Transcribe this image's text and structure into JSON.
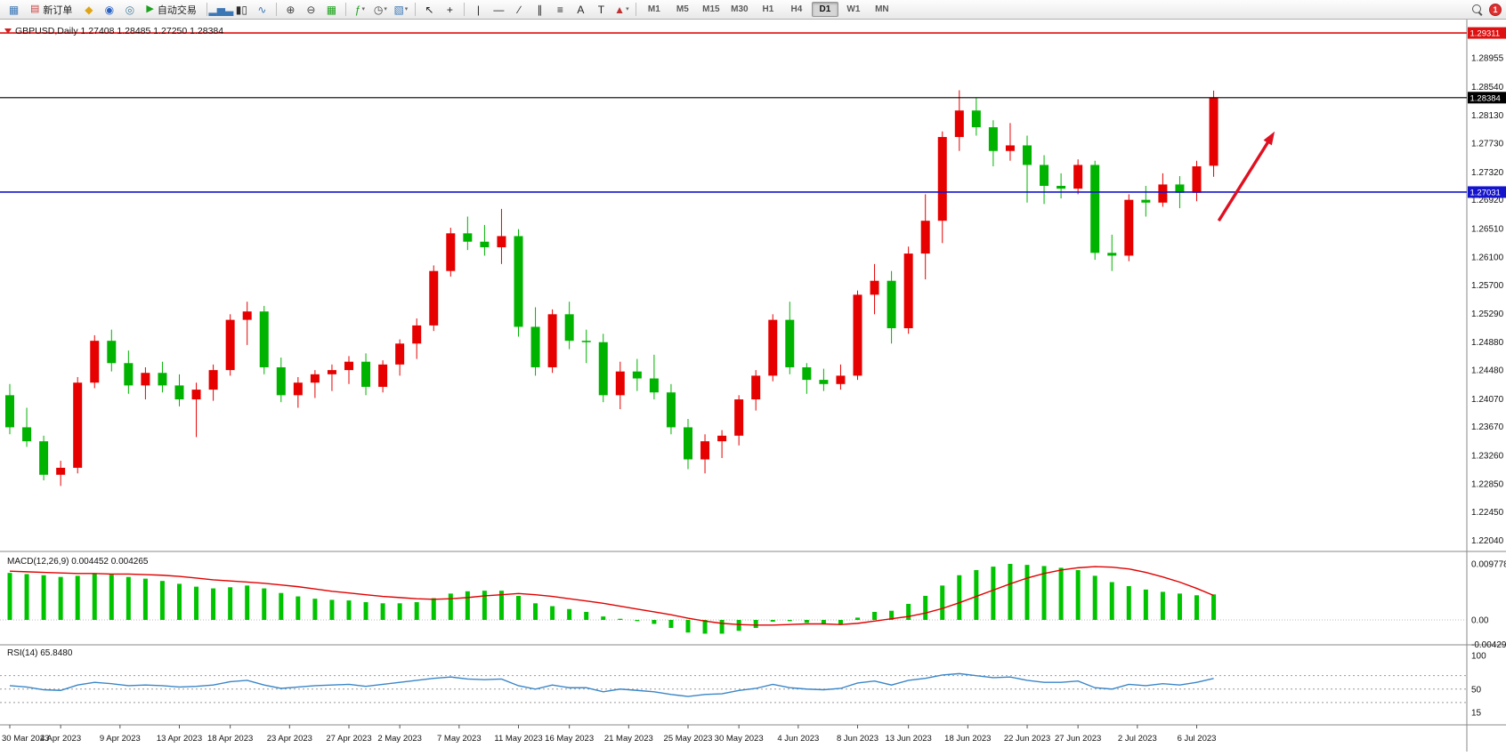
{
  "toolbar": {
    "items": [
      {
        "type": "icon",
        "name": "new-chart-icon",
        "glyph": "▦",
        "color": "#3b77b5"
      },
      {
        "type": "button",
        "name": "new-order-button",
        "glyph": "▤",
        "glyph_color": "#c84040",
        "label": "新订单"
      },
      {
        "type": "icon",
        "name": "mql5-market-icon",
        "glyph": "◆",
        "color": "#dfa517"
      },
      {
        "type": "icon",
        "name": "community-icon",
        "glyph": "◉",
        "color": "#2a62c4"
      },
      {
        "type": "icon",
        "name": "support-icon",
        "glyph": "◎",
        "color": "#467d9e"
      },
      {
        "type": "button",
        "name": "auto-trading-button",
        "glyph": "▶",
        "glyph_color": "#1ba11b",
        "label": "自动交易"
      },
      {
        "type": "sep"
      },
      {
        "type": "icon",
        "name": "bar-chart-icon",
        "glyph": "▂▅▃",
        "color": "#3b77b5"
      },
      {
        "type": "icon",
        "name": "candlestick-chart-icon",
        "glyph": "▮▯",
        "color": "#2b2b2b"
      },
      {
        "type": "icon",
        "name": "line-chart-icon",
        "glyph": "∿",
        "color": "#3b77b5"
      },
      {
        "type": "sep"
      },
      {
        "type": "icon",
        "name": "zoom-in-icon",
        "glyph": "⊕",
        "color": "#444444"
      },
      {
        "type": "icon",
        "name": "zoom-out-icon",
        "glyph": "⊖",
        "color": "#444444"
      },
      {
        "type": "icon",
        "name": "tile-windows-icon",
        "glyph": "▦",
        "color": "#1ba11b"
      },
      {
        "type": "sep"
      },
      {
        "type": "icon",
        "name": "indicators-icon",
        "glyph": "ƒ",
        "color": "#1ba11b",
        "caret": true
      },
      {
        "type": "icon",
        "name": "periods-icon",
        "glyph": "◷",
        "color": "#444444",
        "caret": true
      },
      {
        "type": "icon",
        "name": "templates-icon",
        "glyph": "▧",
        "color": "#3b77b5",
        "caret": true
      },
      {
        "type": "sep"
      },
      {
        "type": "icon",
        "name": "cursor-icon",
        "glyph": "↖",
        "color": "#222222"
      },
      {
        "type": "icon",
        "name": "crosshair-icon",
        "glyph": "+",
        "color": "#222222"
      },
      {
        "type": "sep"
      },
      {
        "type": "icon",
        "name": "vertical-line-icon",
        "glyph": "|",
        "color": "#222222"
      },
      {
        "type": "icon",
        "name": "horizontal-line-icon",
        "glyph": "—",
        "color": "#222222"
      },
      {
        "type": "icon",
        "name": "trendline-icon",
        "glyph": "∕",
        "color": "#222222"
      },
      {
        "type": "icon",
        "name": "equidistant-channel-icon",
        "glyph": "∥",
        "color": "#222222"
      },
      {
        "type": "icon",
        "name": "fibonacci-icon",
        "glyph": "≡",
        "color": "#222222"
      },
      {
        "type": "icon",
        "name": "text-icon",
        "glyph": "A",
        "color": "#222222"
      },
      {
        "type": "icon",
        "name": "text-label-icon",
        "glyph": "T",
        "color": "#222222"
      },
      {
        "type": "icon",
        "name": "arrows-icon",
        "glyph": "▲",
        "color": "#c03030",
        "caret": true
      },
      {
        "type": "sep"
      }
    ],
    "timeframes": [
      "M1",
      "M5",
      "M15",
      "M30",
      "H1",
      "H4",
      "D1",
      "W1",
      "MN"
    ],
    "active_timeframe": "D1",
    "notification_count": "1"
  },
  "chart": {
    "symbol_label": "GBPUSD,Daily",
    "ohlc_label": "1.27408 1.28485 1.27250 1.28384",
    "price_axis": [
      "1.28955",
      "1.28540",
      "1.28130",
      "1.27730",
      "1.27320",
      "1.26920",
      "1.26510",
      "1.26100",
      "1.25700",
      "1.25290",
      "1.24880",
      "1.24480",
      "1.24070",
      "1.23670",
      "1.23260",
      "1.22850",
      "1.22450",
      "1.22040"
    ],
    "levels": [
      {
        "label": "1.29311",
        "value": 1.29311,
        "color": "#dd1111",
        "width": 1.6
      },
      {
        "label": "1.28384",
        "value": 1.28384,
        "color": "#000000",
        "width": 1.1
      },
      {
        "label": "1.27031",
        "value": 1.27031,
        "color": "#1414cc",
        "width": 1.6
      }
    ],
    "colors": {
      "up": "#e60000",
      "down": "#00b300",
      "macd_hist": "#00c400",
      "macd_signal": "#e00000",
      "rsi_line": "#3a86c8",
      "arrow": "#e01020",
      "axis_line": "#8a8a8a",
      "text": "#111111"
    }
  },
  "macd_panel": {
    "label": "MACD(12,26,9) 0.004452 0.004265",
    "axis": [
      "0.009778",
      "0.00",
      "-0.004295"
    ]
  },
  "rsi_panel": {
    "label": "RSI(14) 65.8480",
    "axis": [
      "100",
      "50",
      "15"
    ],
    "level_lines": [
      70,
      50,
      30
    ]
  },
  "time_axis": [
    "30 Mar 2023",
    "4 Apr 2023",
    "9 Apr 2023",
    "13 Apr 2023",
    "18 Apr 2023",
    "23 Apr 2023",
    "27 Apr 2023",
    "2 May 2023",
    "7 May 2023",
    "11 May 2023",
    "16 May 2023",
    "21 May 2023",
    "25 May 2023",
    "30 May 2023",
    "4 Jun 2023",
    "8 Jun 2023",
    "13 Jun 2023",
    "18 Jun 2023",
    "22 Jun 2023",
    "27 Jun 2023",
    "2 Jul 2023",
    "6 Jul 2023"
  ],
  "chart_data": {
    "type": "candlestick",
    "symbol": "GBPUSD",
    "timeframe": "Daily",
    "ylim": [
      1.2204,
      1.29311
    ],
    "last_ohlc": {
      "open": 1.27408,
      "high": 1.28485,
      "low": 1.2725,
      "close": 1.28384
    },
    "candles": [
      [
        1.2412,
        1.2428,
        1.2356,
        1.2366
      ],
      [
        1.2366,
        1.2394,
        1.2338,
        1.2346
      ],
      [
        1.2346,
        1.2354,
        1.229,
        1.2298
      ],
      [
        1.2298,
        1.2318,
        1.2282,
        1.2308
      ],
      [
        1.2308,
        1.2438,
        1.23,
        1.243
      ],
      [
        1.243,
        1.2498,
        1.2422,
        1.249
      ],
      [
        1.249,
        1.2506,
        1.2446,
        1.2458
      ],
      [
        1.2458,
        1.2476,
        1.2414,
        1.2426
      ],
      [
        1.2426,
        1.2452,
        1.2406,
        1.2444
      ],
      [
        1.2444,
        1.246,
        1.2416,
        1.2426
      ],
      [
        1.2426,
        1.2442,
        1.2396,
        1.2406
      ],
      [
        1.2406,
        1.243,
        1.2352,
        1.242
      ],
      [
        1.242,
        1.2456,
        1.2404,
        1.2448
      ],
      [
        1.2448,
        1.2528,
        1.244,
        1.252
      ],
      [
        1.252,
        1.2546,
        1.2484,
        1.2532
      ],
      [
        1.2532,
        1.254,
        1.2442,
        1.2452
      ],
      [
        1.2452,
        1.2466,
        1.2402,
        1.2412
      ],
      [
        1.2412,
        1.2438,
        1.2394,
        1.243
      ],
      [
        1.243,
        1.2448,
        1.2408,
        1.2442
      ],
      [
        1.2442,
        1.2456,
        1.2418,
        1.2448
      ],
      [
        1.2448,
        1.2468,
        1.2428,
        1.246
      ],
      [
        1.246,
        1.2472,
        1.2412,
        1.2424
      ],
      [
        1.2424,
        1.2462,
        1.2416,
        1.2456
      ],
      [
        1.2456,
        1.2492,
        1.244,
        1.2486
      ],
      [
        1.2486,
        1.2522,
        1.2464,
        1.2512
      ],
      [
        1.2512,
        1.2598,
        1.2504,
        1.259
      ],
      [
        1.259,
        1.2652,
        1.2582,
        1.2644
      ],
      [
        1.2644,
        1.2668,
        1.262,
        1.2632
      ],
      [
        1.2632,
        1.2656,
        1.2612,
        1.2624
      ],
      [
        1.2624,
        1.2679,
        1.26,
        1.264
      ],
      [
        1.264,
        1.265,
        1.2496,
        1.251
      ],
      [
        1.251,
        1.2538,
        1.244,
        1.2452
      ],
      [
        1.2452,
        1.2535,
        1.2444,
        1.2528
      ],
      [
        1.2528,
        1.2546,
        1.2478,
        1.249
      ],
      [
        1.249,
        1.2506,
        1.2458,
        1.2488
      ],
      [
        1.2488,
        1.25,
        1.2402,
        1.2412
      ],
      [
        1.2412,
        1.246,
        1.2392,
        1.2446
      ],
      [
        1.2446,
        1.2464,
        1.2418,
        1.2436
      ],
      [
        1.2436,
        1.247,
        1.2406,
        1.2416
      ],
      [
        1.2416,
        1.2428,
        1.2356,
        1.2366
      ],
      [
        1.2366,
        1.2378,
        1.2306,
        1.232
      ],
      [
        1.232,
        1.2356,
        1.23,
        1.2346
      ],
      [
        1.2346,
        1.2362,
        1.2322,
        1.2354
      ],
      [
        1.2354,
        1.2412,
        1.234,
        1.2406
      ],
      [
        1.2406,
        1.2448,
        1.239,
        1.244
      ],
      [
        1.244,
        1.2528,
        1.2432,
        1.252
      ],
      [
        1.252,
        1.2546,
        1.2442,
        1.2452
      ],
      [
        1.2452,
        1.2458,
        1.2414,
        1.2434
      ],
      [
        1.2434,
        1.245,
        1.2418,
        1.2428
      ],
      [
        1.2428,
        1.2456,
        1.242,
        1.244
      ],
      [
        1.244,
        1.2562,
        1.2434,
        1.2556
      ],
      [
        1.2556,
        1.26,
        1.2528,
        1.2576
      ],
      [
        1.2576,
        1.259,
        1.2486,
        1.2508
      ],
      [
        1.2508,
        1.2625,
        1.25,
        1.2615
      ],
      [
        1.2615,
        1.27,
        1.2578,
        1.2662
      ],
      [
        1.2662,
        1.279,
        1.263,
        1.2782
      ],
      [
        1.2782,
        1.2849,
        1.2762,
        1.282
      ],
      [
        1.282,
        1.2838,
        1.2784,
        1.2796
      ],
      [
        1.2796,
        1.2806,
        1.274,
        1.2762
      ],
      [
        1.2762,
        1.2802,
        1.2748,
        1.277
      ],
      [
        1.277,
        1.2784,
        1.2688,
        1.2742
      ],
      [
        1.2742,
        1.2756,
        1.2686,
        1.2712
      ],
      [
        1.2712,
        1.273,
        1.2694,
        1.2708
      ],
      [
        1.2708,
        1.275,
        1.27,
        1.2742
      ],
      [
        1.2742,
        1.2748,
        1.2606,
        1.2616
      ],
      [
        1.2616,
        1.2642,
        1.259,
        1.2612
      ],
      [
        1.2612,
        1.27,
        1.2604,
        1.2692
      ],
      [
        1.2692,
        1.2712,
        1.2668,
        1.2688
      ],
      [
        1.2688,
        1.273,
        1.2682,
        1.2714
      ],
      [
        1.2714,
        1.2726,
        1.268,
        1.2702
      ],
      [
        1.2702,
        1.2748,
        1.269,
        1.274
      ],
      [
        1.27408,
        1.28485,
        1.2725,
        1.28384
      ]
    ],
    "macd_histogram": [
      0.0082,
      0.008,
      0.0078,
      0.0075,
      0.0077,
      0.008,
      0.0079,
      0.0075,
      0.0072,
      0.0068,
      0.0063,
      0.0058,
      0.0055,
      0.0057,
      0.006,
      0.0055,
      0.0047,
      0.0041,
      0.0037,
      0.0035,
      0.0034,
      0.0031,
      0.0029,
      0.0029,
      0.0031,
      0.0038,
      0.0046,
      0.005,
      0.0051,
      0.0051,
      0.0042,
      0.0029,
      0.0024,
      0.0019,
      0.0014,
      0.0006,
      0.0002,
      -0.0002,
      -0.0007,
      -0.0014,
      -0.0022,
      -0.0024,
      -0.0024,
      -0.0019,
      -0.0014,
      -0.0003,
      -0.0002,
      -0.0005,
      -0.0008,
      -0.0008,
      0.0004,
      0.0014,
      0.0016,
      0.0028,
      0.0042,
      0.006,
      0.0078,
      0.0087,
      0.0093,
      0.009778,
      0.0096,
      0.0094,
      0.0091,
      0.0087,
      0.0077,
      0.0066,
      0.0059,
      0.0053,
      0.0049,
      0.0046,
      0.0043,
      0.004452
    ],
    "macd_signal": [
      0.0085,
      0.0084,
      0.0083,
      0.0082,
      0.0081,
      0.0081,
      0.008,
      0.008,
      0.0079,
      0.0078,
      0.0076,
      0.0073,
      0.007,
      0.0068,
      0.0066,
      0.0064,
      0.0061,
      0.0058,
      0.0054,
      0.005,
      0.0047,
      0.0044,
      0.0041,
      0.0039,
      0.0037,
      0.0036,
      0.0037,
      0.0039,
      0.0042,
      0.0044,
      0.0046,
      0.0044,
      0.0041,
      0.0037,
      0.0033,
      0.0029,
      0.0024,
      0.0019,
      0.0014,
      0.0009,
      0.0003,
      -0.0002,
      -0.0006,
      -0.0008,
      -0.0009,
      -0.0009,
      -0.0008,
      -0.0007,
      -0.0007,
      -0.0008,
      -0.0006,
      -0.0002,
      0.0002,
      0.0006,
      0.0012,
      0.002,
      0.003,
      0.0041,
      0.0052,
      0.0063,
      0.0073,
      0.0081,
      0.0087,
      0.0091,
      0.0093,
      0.0092,
      0.0089,
      0.0083,
      0.0075,
      0.0066,
      0.0055,
      0.004265
    ],
    "rsi": [
      55,
      53,
      49,
      48,
      56,
      60,
      58,
      55,
      56,
      55,
      53,
      54,
      56,
      61,
      63,
      56,
      51,
      53,
      55,
      56,
      57,
      54,
      57,
      60,
      63,
      66,
      68,
      65,
      64,
      65,
      55,
      50,
      56,
      52,
      52,
      46,
      50,
      48,
      46,
      42,
      39,
      42,
      43,
      48,
      51,
      57,
      52,
      50,
      49,
      51,
      59,
      62,
      56,
      63,
      66,
      71,
      73,
      70,
      67,
      68,
      63,
      60,
      60,
      62,
      52,
      50,
      57,
      55,
      58,
      56,
      60,
      65.848
    ],
    "annotations": {
      "arrow": {
        "from_bar": 71.3,
        "from_price": 1.2662,
        "to_bar": 74.6,
        "to_price": 1.279
      }
    }
  }
}
